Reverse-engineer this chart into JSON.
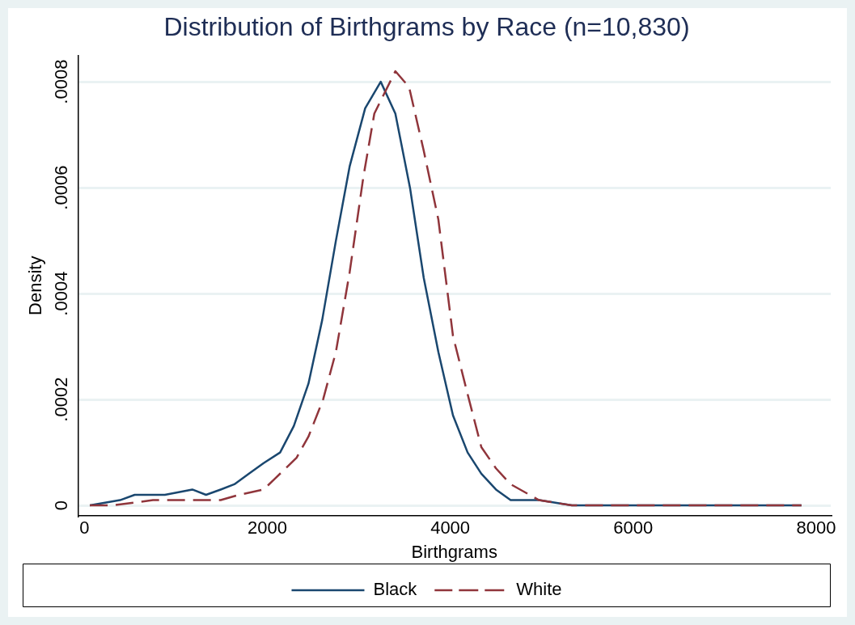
{
  "chart_data": {
    "type": "line",
    "title": "Distribution of Birthgrams by Race (n=10,830)",
    "xlabel": "Birthgrams",
    "ylabel": "Density",
    "xlim": [
      -70,
      8160
    ],
    "xticks": [
      0,
      2000,
      4000,
      6000,
      8000
    ],
    "ylim": [
      -2e-05,
      0.00085
    ],
    "yticks": [
      {
        "value": 0,
        "label": "0"
      },
      {
        "value": 0.0002,
        "label": ".0002"
      },
      {
        "value": 0.0004,
        "label": ".0004"
      },
      {
        "value": 0.0006,
        "label": ".0006"
      },
      {
        "value": 0.0008,
        "label": ".0008"
      }
    ],
    "grid": "y",
    "legend": "bottom",
    "marker": "none",
    "series": [
      {
        "name": "Black",
        "color": "#1a476f",
        "line_style": "solid",
        "x": [
          60,
          390,
          550,
          700,
          880,
          1180,
          1330,
          1490,
          1640,
          1800,
          1960,
          2140,
          2290,
          2450,
          2600,
          2750,
          2900,
          3070,
          3240,
          3400,
          3560,
          3710,
          3870,
          4030,
          4190,
          4340,
          4500,
          4660,
          4970,
          5330,
          6000,
          7000,
          7840
        ],
        "values": [
          0,
          1e-05,
          2e-05,
          2e-05,
          2e-05,
          3e-05,
          2e-05,
          3e-05,
          4e-05,
          6e-05,
          8e-05,
          0.0001,
          0.00015,
          0.00023,
          0.00035,
          0.0005,
          0.00064,
          0.00075,
          0.0008,
          0.00074,
          0.0006,
          0.00043,
          0.00029,
          0.00017,
          0.0001,
          6e-05,
          3e-05,
          1e-05,
          1e-05,
          0,
          0,
          0,
          0
        ]
      },
      {
        "name": "White",
        "color": "#90353b",
        "line_style": "dashed",
        "x": [
          60,
          300,
          750,
          1100,
          1490,
          1690,
          1960,
          2080,
          2320,
          2450,
          2610,
          2750,
          2900,
          3050,
          3170,
          3400,
          3550,
          3710,
          3870,
          4030,
          4190,
          4340,
          4500,
          4660,
          4970,
          5330,
          5690,
          7000,
          7840
        ],
        "values": [
          0,
          0,
          1e-05,
          1e-05,
          1e-05,
          2e-05,
          3e-05,
          5e-05,
          9e-05,
          0.00013,
          0.0002,
          0.00029,
          0.00044,
          0.00062,
          0.00074,
          0.00082,
          0.00079,
          0.00067,
          0.00054,
          0.00032,
          0.00021,
          0.00011,
          7e-05,
          4e-05,
          1e-05,
          0,
          0,
          0,
          0
        ]
      }
    ]
  }
}
